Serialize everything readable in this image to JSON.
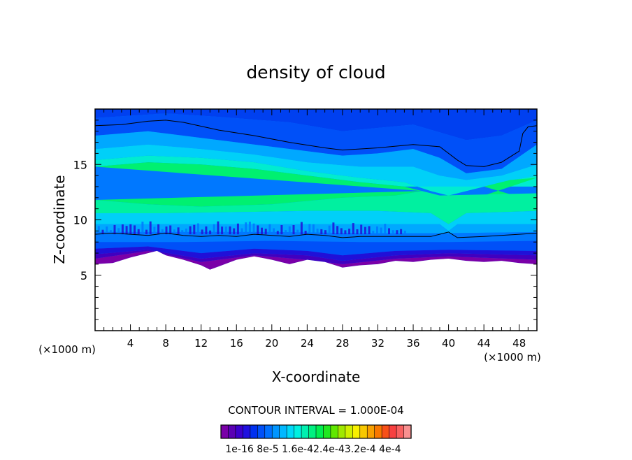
{
  "chart_data": {
    "type": "heatmap",
    "title": "density of cloud",
    "xlabel": "X-coordinate",
    "ylabel": "Z-coordinate",
    "x_unit_left": "(×1000 m)",
    "x_unit_right": "(×1000 m)",
    "xlim": [
      0,
      50
    ],
    "ylim": [
      0,
      20
    ],
    "x_ticks": [
      4,
      8,
      12,
      16,
      20,
      24,
      28,
      32,
      36,
      40,
      44,
      48
    ],
    "y_ticks": [
      5,
      10,
      15
    ],
    "contour_interval_text": "CONTOUR INTERVAL = 1.000E-04",
    "colorbar": {
      "vmin": 1e-16,
      "vmax": 0.0004,
      "labels": [
        "1e-16",
        "8e-5",
        "1.6e-4",
        "2.4e-4",
        "3.2e-4",
        "4e-4"
      ],
      "label_line": "1e-16 8e-5 1.6e-42.4e-43.2e-4 4e-4",
      "colors": [
        "#7a00a8",
        "#5a00b4",
        "#3c00cc",
        "#2010e0",
        "#0030f0",
        "#0050f8",
        "#0070ff",
        "#0095ff",
        "#00b8ff",
        "#00d8f8",
        "#00f0e0",
        "#00f0b0",
        "#00f080",
        "#00ee50",
        "#20e820",
        "#60e800",
        "#a0e800",
        "#d0f000",
        "#f8f000",
        "#f8c800",
        "#f8a000",
        "#f87800",
        "#f85018",
        "#f84040",
        "#f86060",
        "#f89090"
      ]
    },
    "field_colors": {
      "top_band": "#0040f0",
      "upper_blue": "#0050f8",
      "upper_mid": "#0078ff",
      "sky": "#00a8ff",
      "cyan": "#00d0f8",
      "aqua": "#00ecd0",
      "teal_green": "#00f0a0",
      "green": "#00f070",
      "deep_blue": "#2010d8",
      "indigo": "#4000c0",
      "violet": "#7a00a8",
      "empty": "#ffffff"
    },
    "cloud_top_contour": [
      [
        0,
        18.5
      ],
      [
        3,
        18.6
      ],
      [
        6,
        18.9
      ],
      [
        8,
        19.0
      ],
      [
        10,
        18.8
      ],
      [
        14,
        18.1
      ],
      [
        18,
        17.6
      ],
      [
        22,
        17.0
      ],
      [
        26,
        16.5
      ],
      [
        28,
        16.3
      ],
      [
        32,
        16.5
      ],
      [
        36,
        16.8
      ],
      [
        39,
        16.6
      ],
      [
        41,
        15.4
      ],
      [
        42,
        14.9
      ],
      [
        44,
        14.8
      ],
      [
        46,
        15.2
      ],
      [
        48,
        16.2
      ],
      [
        48.4,
        17.8
      ],
      [
        49,
        18.4
      ],
      [
        50,
        18.5
      ]
    ],
    "cloud_base_contour": [
      [
        0,
        8.7
      ],
      [
        2,
        8.8
      ],
      [
        4,
        8.7
      ],
      [
        6,
        8.6
      ],
      [
        8,
        8.8
      ],
      [
        10,
        8.6
      ],
      [
        12,
        8.5
      ],
      [
        14,
        8.6
      ],
      [
        16,
        8.5
      ],
      [
        18,
        8.7
      ],
      [
        20,
        8.6
      ],
      [
        22,
        8.5
      ],
      [
        24,
        8.7
      ],
      [
        26,
        8.6
      ],
      [
        28,
        8.4
      ],
      [
        30,
        8.5
      ],
      [
        34,
        8.5
      ],
      [
        38,
        8.5
      ],
      [
        40,
        8.9
      ],
      [
        41,
        8.4
      ],
      [
        44,
        8.5
      ],
      [
        48,
        8.7
      ],
      [
        50,
        8.8
      ]
    ],
    "lower_boundary": [
      [
        0,
        6.0
      ],
      [
        2,
        6.1
      ],
      [
        4,
        6.6
      ],
      [
        6,
        7.0
      ],
      [
        7,
        7.2
      ],
      [
        8,
        6.8
      ],
      [
        10,
        6.4
      ],
      [
        12,
        5.9
      ],
      [
        13,
        5.5
      ],
      [
        14,
        5.8
      ],
      [
        16,
        6.4
      ],
      [
        18,
        6.7
      ],
      [
        20,
        6.4
      ],
      [
        22,
        6.0
      ],
      [
        24,
        6.4
      ],
      [
        26,
        6.2
      ],
      [
        28,
        5.7
      ],
      [
        30,
        5.9
      ],
      [
        32,
        6.0
      ],
      [
        34,
        6.3
      ],
      [
        36,
        6.2
      ],
      [
        38,
        6.4
      ],
      [
        40,
        6.5
      ],
      [
        42,
        6.3
      ],
      [
        44,
        6.2
      ],
      [
        46,
        6.3
      ],
      [
        48,
        6.1
      ],
      [
        50,
        6.0
      ]
    ]
  }
}
